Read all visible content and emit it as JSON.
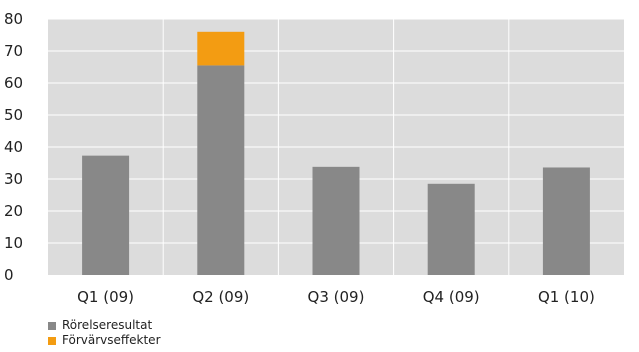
{
  "chart_data": {
    "type": "bar",
    "stacked": true,
    "title": "",
    "xlabel": "",
    "ylabel": "",
    "categories": [
      "Q1 (09)",
      "Q2 (09)",
      "Q3 (09)",
      "Q4 (09)",
      "Q1 (10)"
    ],
    "series": [
      {
        "name": "Rörelseresultat",
        "color": "#888888",
        "values": [
          37.3,
          65.5,
          33.8,
          28.5,
          33.6
        ]
      },
      {
        "name": "Förvärvseffekter",
        "color": "#f39c12",
        "values": [
          0,
          10.5,
          0,
          0,
          0
        ]
      }
    ],
    "ylim": [
      0,
      80
    ],
    "yticks": [
      0,
      10,
      20,
      30,
      40,
      50,
      60,
      70,
      80
    ],
    "grid": true,
    "plot_background": "#dcdcdc",
    "legend_position": "bottom-left"
  }
}
